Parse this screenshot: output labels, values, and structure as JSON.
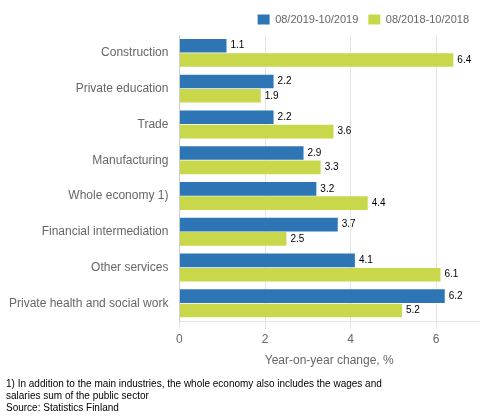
{
  "chart_data": {
    "type": "bar",
    "orientation": "horizontal",
    "categories": [
      "Construction",
      "Private education",
      "Trade",
      "Manufacturing",
      "Whole economy 1)",
      "Financial intermediation",
      "Other services",
      "Private health and social work"
    ],
    "series": [
      {
        "name": "08/2019-10/2019",
        "color": "#2E75B6",
        "values": [
          1.1,
          2.2,
          2.2,
          2.9,
          3.2,
          3.7,
          4.1,
          6.2
        ]
      },
      {
        "name": "08/2018-10/2018",
        "color": "#C9D84A",
        "values": [
          6.4,
          1.9,
          3.6,
          3.3,
          4.4,
          2.5,
          6.1,
          5.2
        ]
      }
    ],
    "xlabel": "Year-on-year change, %",
    "xlim": [
      0,
      7.0
    ],
    "xticks": [
      0,
      2,
      4,
      6
    ],
    "grid": "x",
    "legend": "upper right",
    "data_labels": true,
    "annotations": [
      "1) In addition to the main industries, the whole economy also includes the wages and",
      "salaries sum of the public sector",
      "Source: Statistics Finland"
    ]
  }
}
